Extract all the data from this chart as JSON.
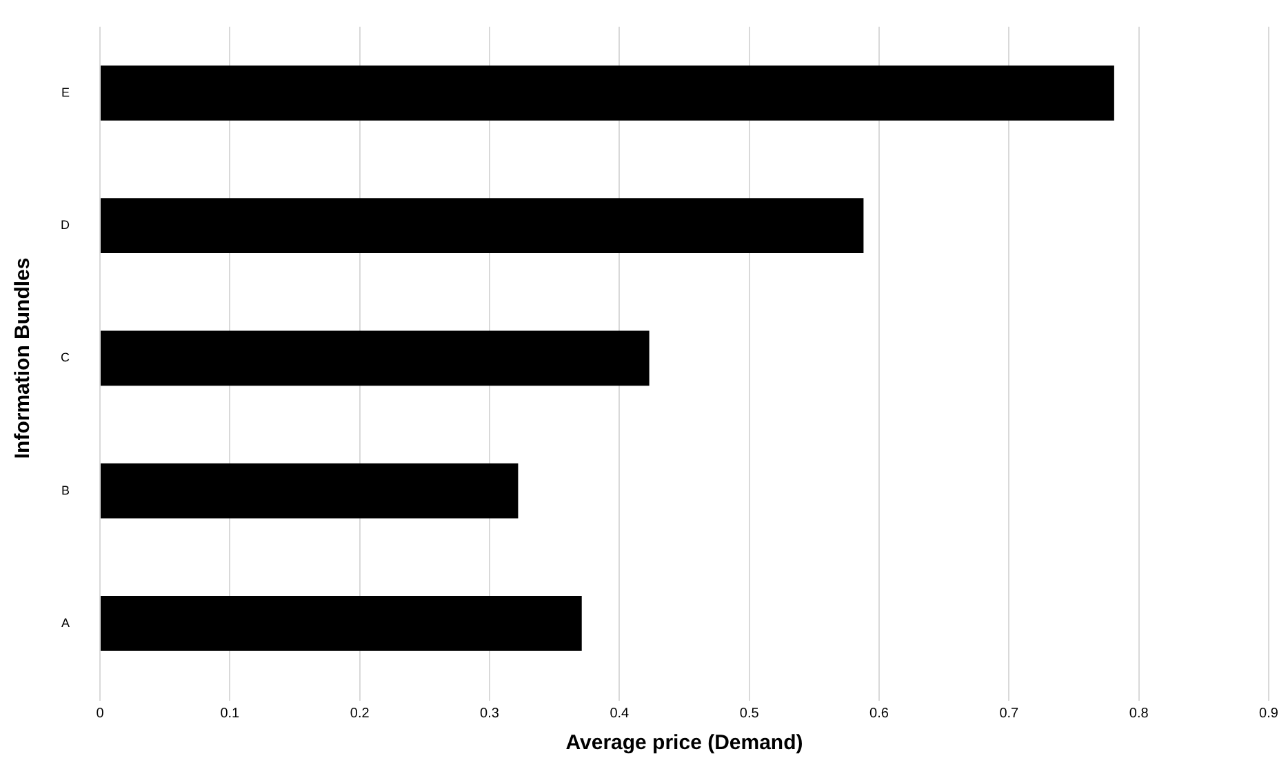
{
  "chart_data": {
    "type": "bar",
    "orientation": "horizontal",
    "categories": [
      "E",
      "D",
      "C",
      "B",
      "A"
    ],
    "values": [
      0.781,
      0.588,
      0.423,
      0.322,
      0.371
    ],
    "color": "#000000",
    "xlabel": "Average price (Demand)",
    "ylabel": "Information Bundles",
    "xlim": [
      0,
      0.9
    ],
    "xticks": [
      0,
      0.1,
      0.2,
      0.3,
      0.4,
      0.5,
      0.6,
      0.7,
      0.8,
      0.9
    ],
    "grid": "x",
    "legend": false
  }
}
